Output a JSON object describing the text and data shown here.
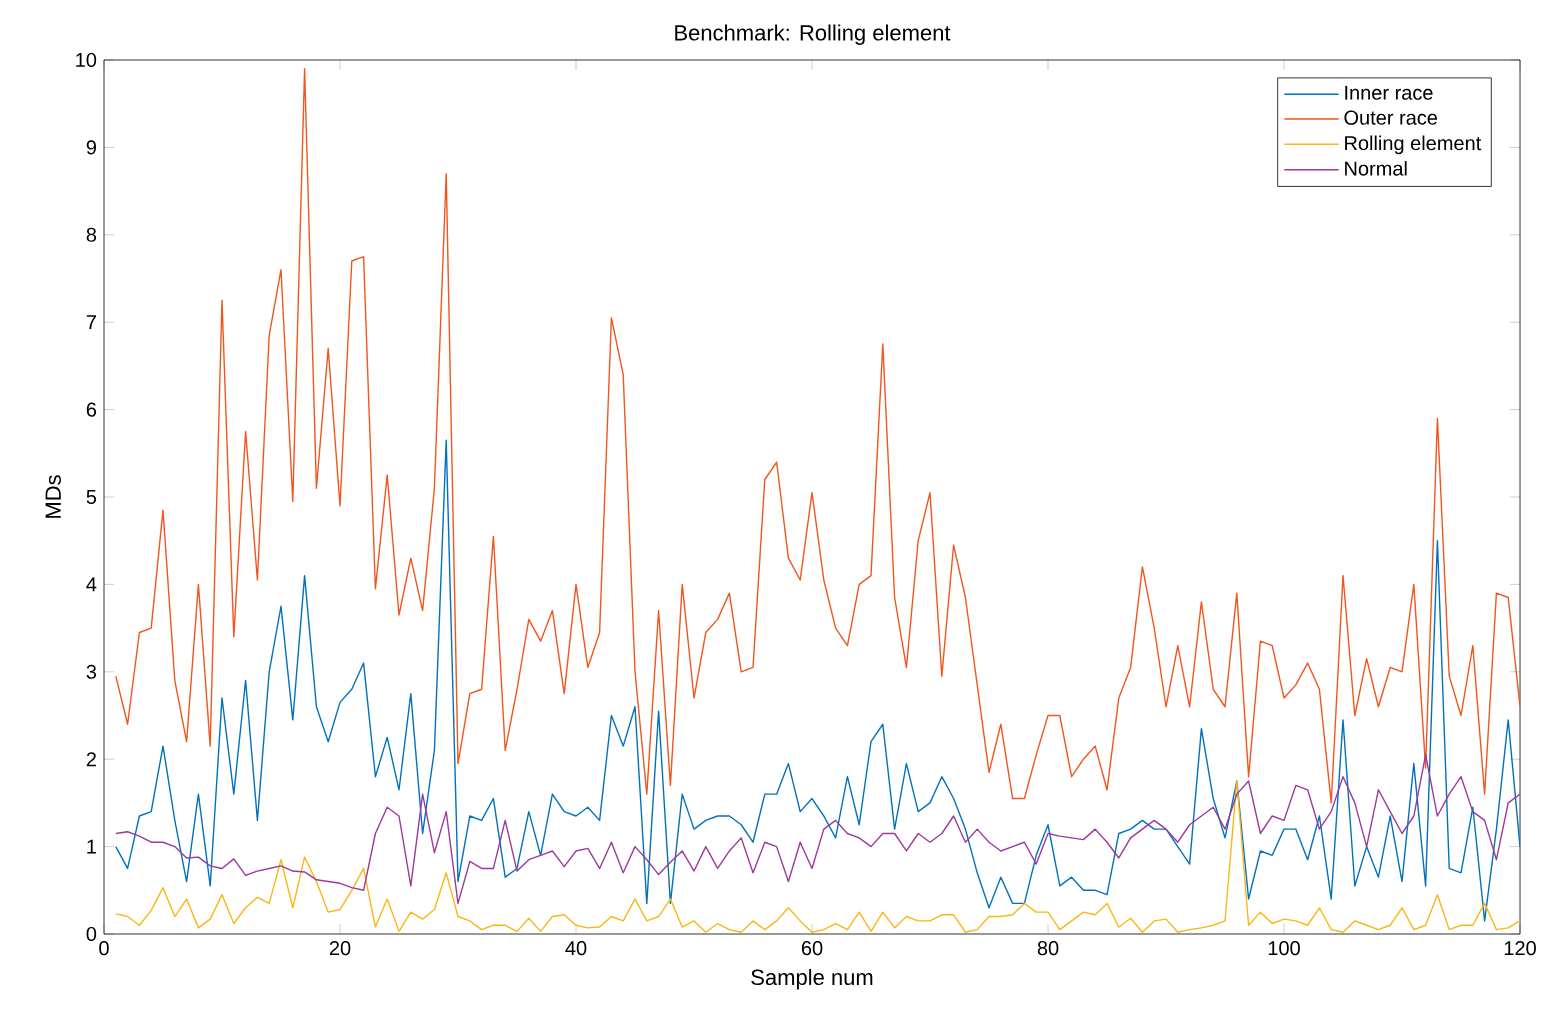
{
  "chart_data": {
    "type": "line",
    "title": "Benchmark: Rolling element",
    "xlabel": "Sample num",
    "ylabel": "MDs",
    "x": [
      1,
      2,
      3,
      4,
      5,
      6,
      7,
      8,
      9,
      10,
      11,
      12,
      13,
      14,
      15,
      16,
      17,
      18,
      19,
      20,
      21,
      22,
      23,
      24,
      25,
      26,
      27,
      28,
      29,
      30,
      31,
      32,
      33,
      34,
      35,
      36,
      37,
      38,
      39,
      40,
      41,
      42,
      43,
      44,
      45,
      46,
      47,
      48,
      49,
      50,
      51,
      52,
      53,
      54,
      55,
      56,
      57,
      58,
      59,
      60,
      61,
      62,
      63,
      64,
      65,
      66,
      67,
      68,
      69,
      70,
      71,
      72,
      73,
      74,
      75,
      76,
      77,
      78,
      79,
      80,
      81,
      82,
      83,
      84,
      85,
      86,
      87,
      88,
      89,
      90,
      91,
      92,
      93,
      94,
      95,
      96,
      97,
      98,
      99,
      100,
      101,
      102,
      103,
      104,
      105,
      106,
      107,
      108,
      109,
      110,
      111,
      112,
      113,
      114,
      115,
      116,
      117,
      118,
      119,
      120
    ],
    "series": [
      {
        "name": "Inner race",
        "color": "#0072bd",
        "values": [
          1.0,
          0.75,
          1.35,
          1.4,
          2.15,
          1.3,
          0.6,
          1.6,
          0.55,
          2.7,
          1.6,
          2.9,
          1.3,
          3.0,
          3.75,
          2.45,
          4.1,
          2.6,
          2.2,
          2.65,
          2.8,
          3.1,
          1.8,
          2.25,
          1.65,
          2.75,
          1.15,
          2.1,
          5.65,
          0.6,
          1.35,
          1.3,
          1.55,
          0.65,
          0.75,
          1.4,
          0.9,
          1.6,
          1.4,
          1.35,
          1.45,
          1.3,
          2.5,
          2.15,
          2.6,
          0.35,
          2.55,
          0.35,
          1.6,
          1.2,
          1.3,
          1.35,
          1.35,
          1.25,
          1.05,
          1.6,
          1.6,
          1.95,
          1.4,
          1.55,
          1.35,
          1.1,
          1.8,
          1.25,
          2.2,
          2.4,
          1.2,
          1.95,
          1.4,
          1.5,
          1.8,
          1.55,
          1.2,
          0.7,
          0.3,
          0.65,
          0.35,
          0.35,
          0.9,
          1.25,
          0.55,
          0.65,
          0.5,
          0.5,
          0.45,
          1.15,
          1.2,
          1.3,
          1.2,
          1.2,
          1.0,
          0.8,
          2.35,
          1.55,
          1.1,
          1.75,
          0.4,
          0.95,
          0.9,
          1.2,
          1.2,
          0.85,
          1.35,
          0.4,
          2.45,
          0.55,
          1.0,
          0.65,
          1.35,
          0.6,
          1.95,
          0.55,
          4.5,
          0.75,
          0.7,
          1.45,
          0.15,
          1.2,
          2.45,
          1.0
        ]
      },
      {
        "name": "Outer race",
        "color": "#f0561e",
        "values": [
          2.95,
          2.4,
          3.45,
          3.5,
          4.85,
          2.9,
          2.2,
          4.0,
          2.15,
          7.25,
          3.4,
          5.75,
          4.05,
          6.85,
          7.6,
          4.95,
          9.9,
          5.1,
          6.7,
          4.9,
          7.7,
          7.75,
          3.95,
          5.25,
          3.65,
          4.3,
          3.7,
          5.1,
          8.7,
          1.95,
          2.75,
          2.8,
          4.55,
          2.1,
          2.8,
          3.6,
          3.35,
          3.7,
          2.75,
          4.0,
          3.05,
          3.45,
          7.05,
          6.4,
          3.0,
          1.6,
          3.7,
          1.7,
          4.0,
          2.7,
          3.45,
          3.6,
          3.9,
          3.0,
          3.05,
          5.2,
          5.4,
          4.3,
          4.05,
          5.05,
          4.05,
          3.5,
          3.3,
          4.0,
          4.1,
          6.75,
          3.85,
          3.05,
          4.5,
          5.05,
          2.95,
          4.45,
          3.85,
          2.85,
          1.85,
          2.4,
          1.55,
          1.55,
          2.05,
          2.5,
          2.5,
          1.8,
          2.0,
          2.15,
          1.65,
          2.7,
          3.05,
          4.2,
          3.5,
          2.6,
          3.3,
          2.6,
          3.8,
          2.8,
          2.6,
          3.9,
          1.8,
          3.35,
          3.3,
          2.7,
          2.85,
          3.1,
          2.8,
          1.5,
          4.1,
          2.5,
          3.15,
          2.6,
          3.05,
          3.0,
          4.0,
          1.9,
          5.9,
          2.95,
          2.5,
          3.3,
          1.6,
          3.9,
          3.85,
          2.6
        ]
      },
      {
        "name": "Rolling element",
        "color": "#fbb615",
        "values": [
          0.23,
          0.2,
          0.1,
          0.27,
          0.53,
          0.2,
          0.4,
          0.07,
          0.17,
          0.45,
          0.12,
          0.3,
          0.42,
          0.35,
          0.85,
          0.3,
          0.88,
          0.6,
          0.25,
          0.28,
          0.5,
          0.75,
          0.08,
          0.4,
          0.03,
          0.25,
          0.17,
          0.28,
          0.7,
          0.2,
          0.15,
          0.05,
          0.1,
          0.1,
          0.03,
          0.18,
          0.03,
          0.2,
          0.22,
          0.1,
          0.07,
          0.08,
          0.2,
          0.15,
          0.4,
          0.15,
          0.2,
          0.4,
          0.08,
          0.15,
          0.02,
          0.12,
          0.05,
          0.02,
          0.15,
          0.05,
          0.15,
          0.3,
          0.15,
          0.02,
          0.05,
          0.12,
          0.05,
          0.25,
          0.03,
          0.25,
          0.07,
          0.2,
          0.15,
          0.15,
          0.22,
          0.22,
          0.02,
          0.05,
          0.2,
          0.2,
          0.22,
          0.35,
          0.25,
          0.25,
          0.05,
          0.15,
          0.25,
          0.22,
          0.35,
          0.08,
          0.18,
          0.02,
          0.15,
          0.17,
          0.02,
          0.05,
          0.07,
          0.1,
          0.15,
          1.75,
          0.1,
          0.25,
          0.12,
          0.17,
          0.15,
          0.1,
          0.3,
          0.05,
          0.02,
          0.15,
          0.1,
          0.05,
          0.1,
          0.3,
          0.05,
          0.1,
          0.45,
          0.05,
          0.1,
          0.1,
          0.35,
          0.05,
          0.07,
          0.15
        ]
      },
      {
        "name": "Normal",
        "color": "#9b3a9c",
        "values": [
          1.15,
          1.17,
          1.12,
          1.05,
          1.05,
          1.0,
          0.87,
          0.88,
          0.78,
          0.75,
          0.86,
          0.67,
          0.72,
          0.75,
          0.78,
          0.72,
          0.71,
          0.62,
          0.6,
          0.58,
          0.53,
          0.5,
          1.15,
          1.45,
          1.35,
          0.55,
          1.6,
          0.93,
          1.4,
          0.35,
          0.83,
          0.75,
          0.75,
          1.3,
          0.72,
          0.85,
          0.9,
          0.95,
          0.77,
          0.95,
          0.98,
          0.75,
          1.05,
          0.7,
          1.0,
          0.85,
          0.68,
          0.82,
          0.95,
          0.72,
          1.0,
          0.75,
          0.95,
          1.1,
          0.7,
          1.05,
          1.0,
          0.6,
          1.05,
          0.75,
          1.2,
          1.3,
          1.15,
          1.1,
          1.0,
          1.15,
          1.15,
          0.95,
          1.15,
          1.05,
          1.15,
          1.35,
          1.05,
          1.2,
          1.05,
          0.95,
          1.0,
          1.05,
          0.8,
          1.15,
          1.12,
          1.1,
          1.08,
          1.2,
          1.05,
          0.87,
          1.1,
          1.2,
          1.3,
          1.2,
          1.05,
          1.25,
          1.35,
          1.45,
          1.2,
          1.6,
          1.75,
          1.15,
          1.35,
          1.3,
          1.7,
          1.65,
          1.2,
          1.4,
          1.8,
          1.5,
          1.0,
          1.65,
          1.4,
          1.15,
          1.35,
          2.05,
          1.35,
          1.6,
          1.8,
          1.4,
          1.3,
          0.85,
          1.5,
          1.6
        ]
      }
    ],
    "xlim": [
      0,
      120
    ],
    "xticks": [
      0,
      20,
      40,
      60,
      80,
      100,
      120
    ],
    "ylim": [
      0,
      10
    ],
    "yticks": [
      0,
      1,
      2,
      3,
      4,
      5,
      6,
      7,
      8,
      9,
      10
    ],
    "legend": "top right"
  }
}
